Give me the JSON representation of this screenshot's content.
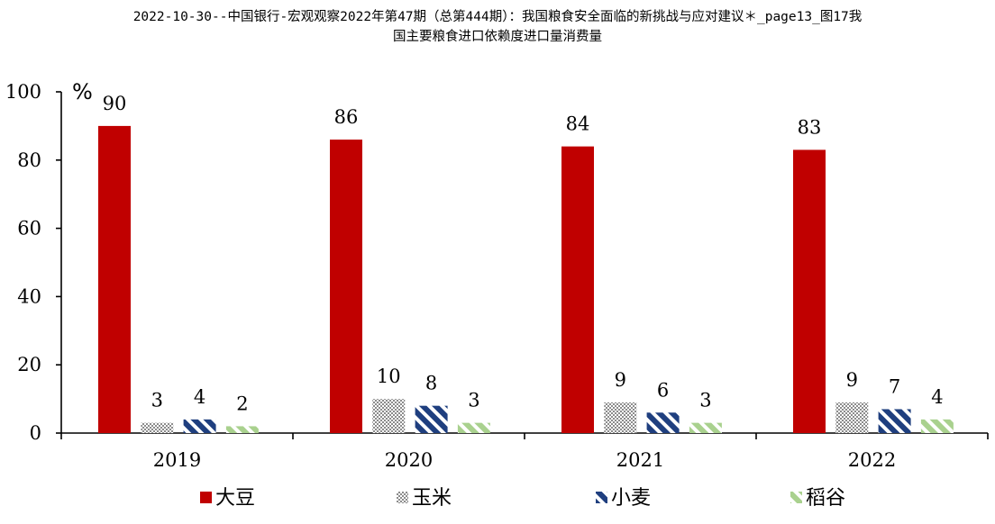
{
  "title_lines": [
    "2022-10-30--中国银行-宏观观察2022年第47期（总第444期）：我国粮食安全面临的新挑战与应对建议＊_page13_图17我",
    "国主要粮食进口依赖度进口量消费量"
  ],
  "chart_data": {
    "type": "bar",
    "title": "",
    "ylabel": "%",
    "xlabel": "",
    "ylim": [
      0,
      100
    ],
    "yticks": [
      0,
      20,
      40,
      60,
      80,
      100
    ],
    "categories": [
      "2019",
      "2020",
      "2021",
      "2022"
    ],
    "legend_position": "bottom",
    "grid": false,
    "series": [
      {
        "name": "大豆",
        "values": [
          90,
          86,
          84,
          83
        ],
        "color": "#c00000",
        "pattern": "solid"
      },
      {
        "name": "玉米",
        "values": [
          3,
          10,
          9,
          9
        ],
        "color": "#8c8c8c",
        "pattern": "checker"
      },
      {
        "name": "小麦",
        "values": [
          4,
          8,
          6,
          7
        ],
        "color": "#1f3f7f",
        "pattern": "wide-diagonal"
      },
      {
        "name": "稻谷",
        "values": [
          2,
          3,
          3,
          4
        ],
        "color": "#a9d18e",
        "pattern": "light-diagonal"
      }
    ]
  }
}
